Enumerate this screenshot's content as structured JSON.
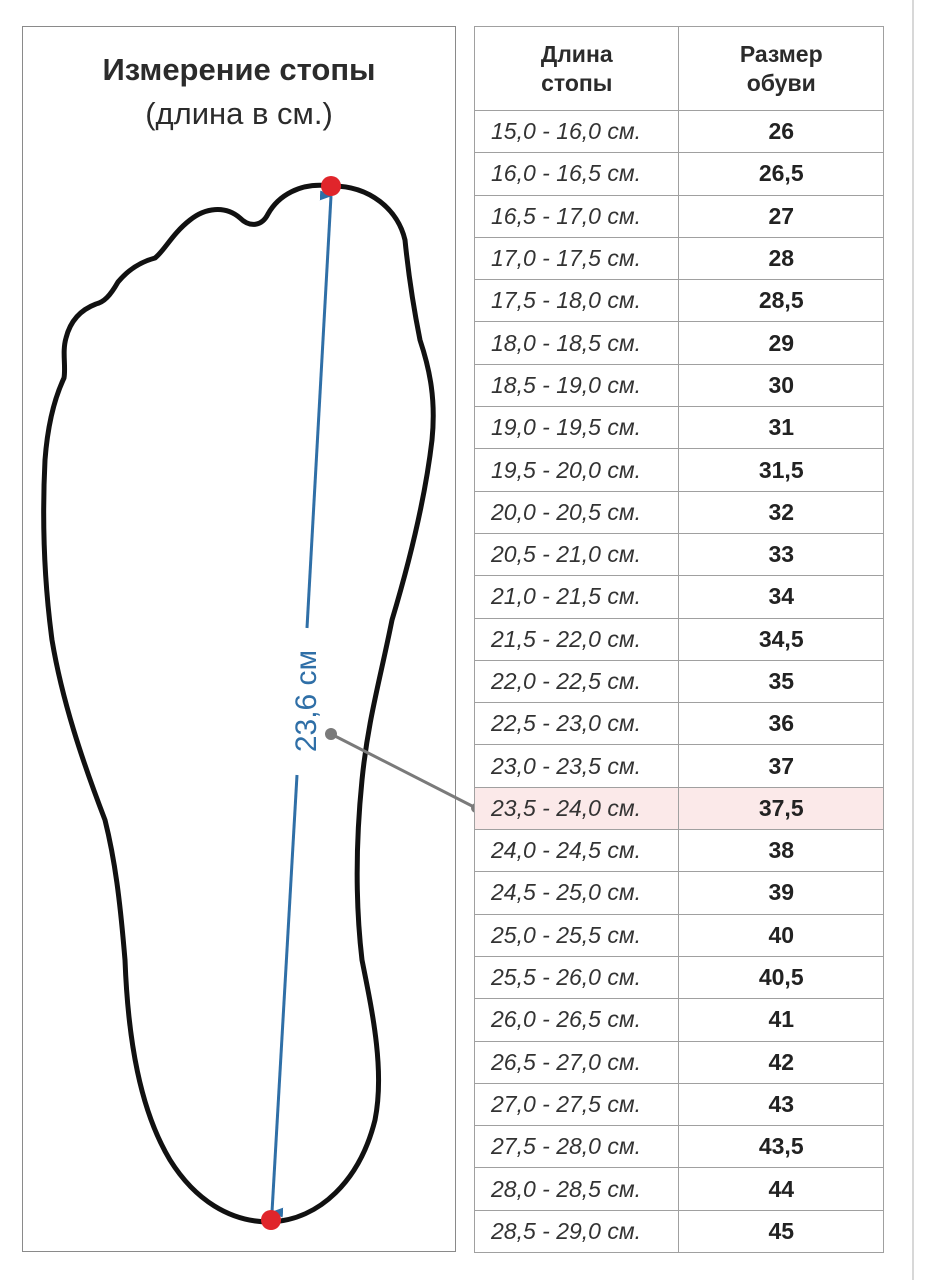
{
  "diagram": {
    "title": "Измерение стопы",
    "subtitle": "(длина в см.)",
    "measurement_label": "23,6 см",
    "colors": {
      "outline": "#111111",
      "arrow": "#2f6fa7",
      "endpoint": "#e0252b",
      "pointer": "#7a7a7a",
      "highlight_row": "#fbe9e9"
    }
  },
  "table": {
    "headers": {
      "length_line1": "Длина",
      "length_line2": "стопы",
      "size_line1": "Размер",
      "size_line2": "обуви"
    },
    "highlight_index": 16,
    "rows": [
      {
        "length": "15,0 - 16,0 см.",
        "size": "26"
      },
      {
        "length": "16,0 - 16,5 см.",
        "size": "26,5"
      },
      {
        "length": "16,5 - 17,0 см.",
        "size": "27"
      },
      {
        "length": "17,0 - 17,5 см.",
        "size": "28"
      },
      {
        "length": "17,5 - 18,0 см.",
        "size": "28,5"
      },
      {
        "length": "18,0 - 18,5 см.",
        "size": "29"
      },
      {
        "length": "18,5 - 19,0 см.",
        "size": "30"
      },
      {
        "length": "19,0 - 19,5 см.",
        "size": "31"
      },
      {
        "length": "19,5 - 20,0 см.",
        "size": "31,5"
      },
      {
        "length": "20,0 - 20,5 см.",
        "size": "32"
      },
      {
        "length": "20,5 - 21,0 см.",
        "size": "33"
      },
      {
        "length": "21,0 - 21,5 см.",
        "size": "34"
      },
      {
        "length": "21,5 - 22,0 см.",
        "size": "34,5"
      },
      {
        "length": "22,0 - 22,5 см.",
        "size": "35"
      },
      {
        "length": "22,5 - 23,0 см.",
        "size": "36"
      },
      {
        "length": "23,0 - 23,5 см.",
        "size": "37"
      },
      {
        "length": "23,5 - 24,0 см.",
        "size": "37,5"
      },
      {
        "length": "24,0 - 24,5 см.",
        "size": "38"
      },
      {
        "length": "24,5 - 25,0 см.",
        "size": "39"
      },
      {
        "length": "25,0 - 25,5 см.",
        "size": "40"
      },
      {
        "length": "25,5 - 26,0 см.",
        "size": "40,5"
      },
      {
        "length": "26,0 - 26,5 см.",
        "size": "41"
      },
      {
        "length": "26,5 - 27,0 см.",
        "size": "42"
      },
      {
        "length": "27,0 - 27,5 см.",
        "size": "43"
      },
      {
        "length": "27,5 - 28,0 см.",
        "size": "43,5"
      },
      {
        "length": "28,0 - 28,5 см.",
        "size": "44"
      },
      {
        "length": "28,5 - 29,0 см.",
        "size": "45"
      }
    ]
  }
}
